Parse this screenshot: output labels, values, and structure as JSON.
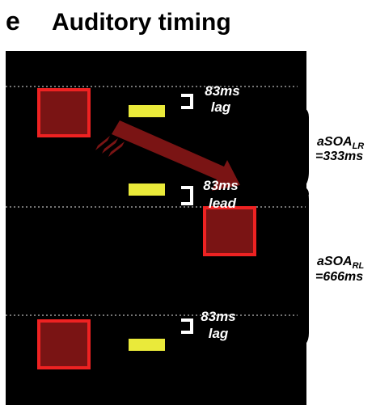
{
  "panel": {
    "letter": "e",
    "title": "Auditory timing"
  },
  "colors": {
    "background": "#000000",
    "square_fill": "#7a1414",
    "square_border": "#ee2222",
    "bar": "#eaea3a",
    "arrow": "#7a1414",
    "dotted_line": "#9a9a9a",
    "text_light": "#ffffff",
    "text_dark": "#000000"
  },
  "events": [
    {
      "timing": "83ms",
      "relation": "lag"
    },
    {
      "timing": "83ms",
      "relation": "lead"
    },
    {
      "timing": "83ms",
      "relation": "lag"
    }
  ],
  "intervals": [
    {
      "name_main": "aSOA",
      "name_sub": "LR",
      "value": "=333ms"
    },
    {
      "name_main": "aSOA",
      "name_sub": "RL",
      "value": "=666ms"
    }
  ],
  "icons": {
    "arrow": "motion-arrow-icon",
    "brace": "bracket-icon"
  }
}
